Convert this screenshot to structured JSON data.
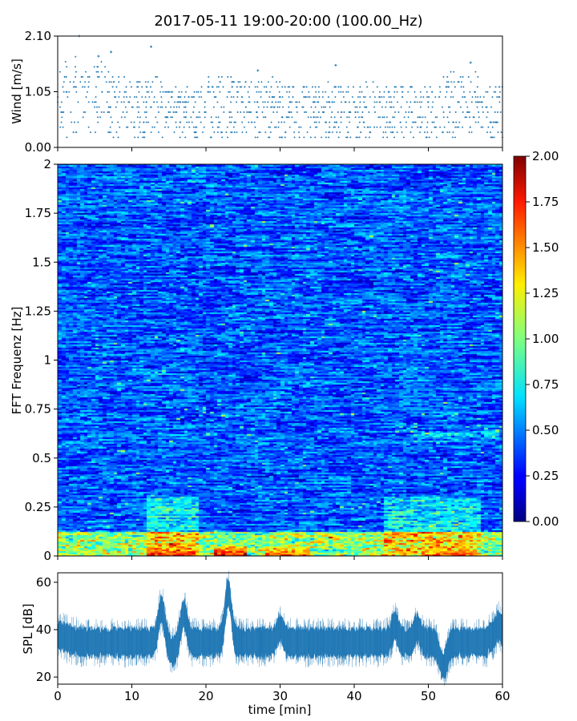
{
  "title": "2017-05-11 19:00-20:00 (100.00_Hz)",
  "chart_data": [
    {
      "type": "scatter",
      "panel": "wind",
      "ylabel": "Wind [m/s]",
      "ylim": [
        0.0,
        2.1
      ],
      "yticks": [
        "0.00",
        "1.05",
        "2.10"
      ],
      "xlim": [
        0,
        60
      ],
      "marker_color": "#1f77b4",
      "wind_levels_step": 0.095,
      "peaks": [
        {
          "x": 2.9,
          "y": 2.1
        },
        {
          "x": 12.6,
          "y": 1.9
        },
        {
          "x": 7.2,
          "y": 1.8
        },
        {
          "x": 5.5,
          "y": 1.72
        },
        {
          "x": 37.5,
          "y": 1.55
        },
        {
          "x": 55.7,
          "y": 1.6
        },
        {
          "x": 27,
          "y": 1.45
        }
      ]
    },
    {
      "type": "heatmap",
      "panel": "spectrogram",
      "ylabel": "FFT Frequenz [Hz]",
      "ylim": [
        0,
        2
      ],
      "yticks": [
        "0",
        "0.25",
        "0.5",
        "0.75",
        "1",
        "1.25",
        "1.5",
        "1.75",
        "2"
      ],
      "xlim": [
        0,
        60
      ],
      "colormap": "jet",
      "colorbar": {
        "range": [
          0.0,
          2.0
        ],
        "ticks": [
          "0.00",
          "0.25",
          "0.50",
          "0.75",
          "1.00",
          "1.25",
          "1.50",
          "1.75",
          "2.00"
        ]
      },
      "low_freq_hotspots": [
        {
          "x_start": 12,
          "x_end": 18.5,
          "value": 1.9
        },
        {
          "x_start": 21,
          "x_end": 25.5,
          "value": 2.0
        },
        {
          "x_start": 28,
          "x_end": 34,
          "value": 1.8
        },
        {
          "x_start": 41,
          "x_end": 46,
          "value": 1.3
        },
        {
          "x_start": 49,
          "x_end": 55.5,
          "value": 1.7
        }
      ]
    },
    {
      "type": "area",
      "panel": "spl",
      "ylabel": "SPL [dB]",
      "xlabel": "time [min]",
      "ylim": [
        17,
        64
      ],
      "yticks": [
        "20",
        "40",
        "60"
      ],
      "xlim": [
        0,
        60
      ],
      "xticks": [
        "0",
        "10",
        "20",
        "30",
        "40",
        "50",
        "60"
      ],
      "color": "#1f77b4",
      "baseline_db": 35,
      "events": [
        {
          "x": 14.0,
          "peak": 55
        },
        {
          "x": 17.0,
          "peak": 53
        },
        {
          "x": 23.0,
          "peak": 62
        },
        {
          "x": 30.0,
          "peak": 47
        },
        {
          "x": 45.5,
          "peak": 48
        },
        {
          "x": 48.5,
          "peak": 47
        },
        {
          "x": 59.5,
          "peak": 46
        }
      ],
      "dips": [
        {
          "x": 15.5,
          "low": 27
        },
        {
          "x": 52.0,
          "low": 21
        }
      ]
    }
  ]
}
